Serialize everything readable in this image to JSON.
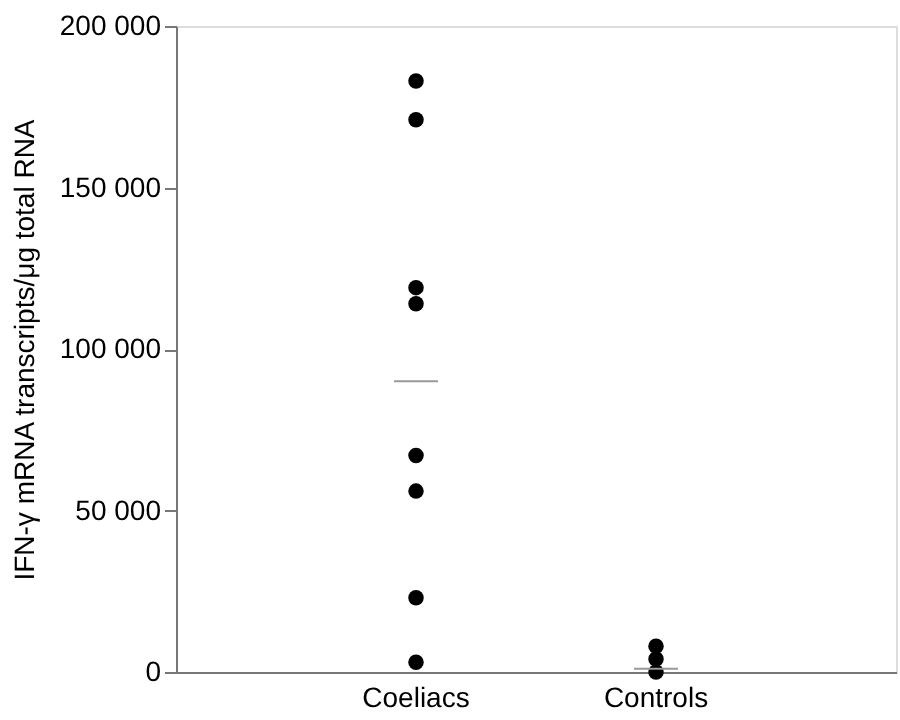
{
  "chart_data": {
    "type": "scatter",
    "categories": [
      "Coeliacs",
      "Controls"
    ],
    "ylabel": "IFN-γ mRNA transcripts/μg total RNA",
    "ylim": [
      0,
      200000
    ],
    "yticks": [
      {
        "value": 0,
        "label": "0"
      },
      {
        "value": 50000,
        "label": "50 000"
      },
      {
        "value": 100000,
        "label": "100 000"
      },
      {
        "value": 150000,
        "label": "150 000"
      },
      {
        "value": 200000,
        "label": "200 000"
      }
    ],
    "grid": false,
    "legend": false,
    "series": [
      {
        "marker": "circle",
        "color": "#000000",
        "x": [
          "Coeliacs",
          "Coeliacs",
          "Coeliacs",
          "Coeliacs",
          "Coeliacs",
          "Coeliacs",
          "Coeliacs",
          "Coeliacs",
          "Controls",
          "Controls",
          "Controls"
        ],
        "values": [
          183000,
          171000,
          119000,
          114000,
          67000,
          56000,
          23000,
          3000,
          8000,
          4000,
          0
        ]
      },
      {
        "type": "bar",
        "color": "#999999",
        "x": [
          "Coeliacs",
          "Controls"
        ],
        "base": [
          90000,
          1000
        ],
        "values": [
          0,
          0
        ]
      }
    ]
  }
}
